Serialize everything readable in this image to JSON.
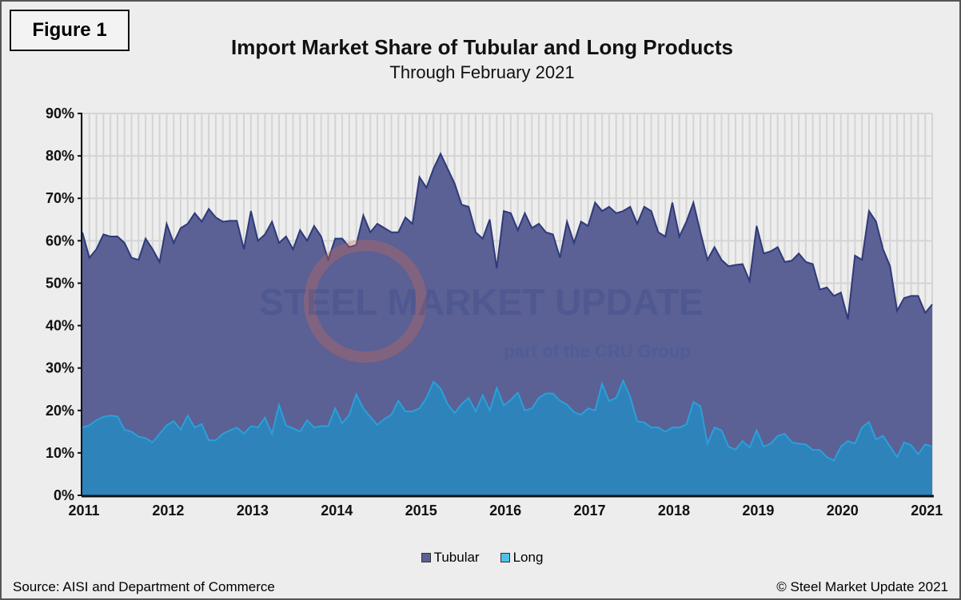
{
  "figure_label": "Figure 1",
  "source": "Source: AISI and Department of Commerce",
  "copyright": "© Steel Market Update 2021",
  "watermark": {
    "line1": "STEEL MARKET UPDATE",
    "line2": "part of the CRU Group"
  },
  "chart_data": {
    "type": "area",
    "stacked": false,
    "title": "Import Market Share of Tubular and Long Products",
    "subtitle": "Through February 2021",
    "x_start": "2011-01",
    "x_end": "2021-02",
    "frequency": "monthly",
    "x_tick_labels": [
      "2011",
      "2012",
      "2013",
      "2014",
      "2015",
      "2016",
      "2017",
      "2018",
      "2019",
      "2020",
      "2021"
    ],
    "y_tick_labels": [
      "0%",
      "10%",
      "20%",
      "30%",
      "40%",
      "50%",
      "60%",
      "70%",
      "80%",
      "90%"
    ],
    "ylim": [
      0,
      90
    ],
    "grid": true,
    "legend_position": "bottom",
    "colors": {
      "Tubular": "#5b6095",
      "Tubular_line": "#2e3a7a",
      "Long": "#2f83bb",
      "Long_line": "#2aa0d8",
      "background": "#ededed"
    },
    "series": [
      {
        "name": "Tubular",
        "values": [
          62,
          56,
          58,
          61.5,
          61,
          61,
          59.5,
          56,
          55.5,
          60.5,
          58,
          55,
          64,
          59.5,
          63,
          64,
          66.5,
          64.5,
          67.5,
          65.5,
          64.5,
          64.7,
          64.7,
          58,
          67,
          60,
          61.5,
          64.5,
          59.5,
          61,
          58,
          62.5,
          60,
          63.5,
          61,
          55.5,
          60.5,
          60.5,
          58.5,
          59,
          66,
          62,
          64,
          63,
          62,
          62,
          65.5,
          64,
          75,
          72.5,
          77,
          80.5,
          77,
          73.5,
          68.5,
          68,
          62,
          60.5,
          65,
          53.5,
          67,
          66.5,
          62.5,
          66.5,
          63,
          64,
          62,
          61.5,
          56,
          64.5,
          59.5,
          64.5,
          63.5,
          69,
          67,
          68,
          66.5,
          67,
          68,
          64,
          68,
          67,
          62,
          61,
          69,
          61,
          64.5,
          69,
          62,
          55.5,
          58.5,
          55.5,
          54,
          54.3,
          54.5,
          50.5,
          63.5,
          57,
          57.5,
          58.5,
          55,
          55.3,
          57,
          55,
          54.5,
          48.5,
          49,
          47,
          47.8,
          41.5,
          56.5,
          55.5,
          67,
          64.5,
          58,
          54,
          43.5,
          46.5,
          47,
          47,
          43,
          45
        ]
      },
      {
        "name": "Long",
        "values": [
          16,
          16.5,
          17.7,
          18.5,
          18.8,
          18.6,
          15.5,
          15,
          13.8,
          13.5,
          12.5,
          14.5,
          16.5,
          17.5,
          15.5,
          18.8,
          16,
          16.8,
          13,
          13,
          14.5,
          15.3,
          16,
          14.5,
          16.3,
          16,
          18.3,
          14.5,
          21.3,
          16.5,
          15.8,
          15,
          17.7,
          16,
          16.3,
          16.3,
          20.5,
          17,
          19,
          23.8,
          20.5,
          18.5,
          16.6,
          18,
          19,
          22.3,
          19.8,
          19.8,
          20.5,
          23,
          26.8,
          25.2,
          21.5,
          19.4,
          21.5,
          23,
          19.8,
          23.6,
          20,
          25.3,
          21.2,
          22.5,
          24.2,
          20,
          20.5,
          23,
          24,
          24,
          22.3,
          21.4,
          19.6,
          19,
          20.5,
          20,
          26.3,
          22.2,
          23,
          27,
          23.2,
          17.5,
          17.2,
          16,
          16,
          15,
          16,
          16,
          16.7,
          22,
          21,
          12.2,
          16,
          15.3,
          11.5,
          10.8,
          12.8,
          11.3,
          15.3,
          11.5,
          12.2,
          14,
          14.5,
          12.5,
          12.2,
          12,
          10.7,
          10.7,
          9,
          8.2,
          11.5,
          12.8,
          12.2,
          16,
          17.3,
          13.2,
          14,
          11.5,
          9,
          12.5,
          11.8,
          9.7,
          12,
          11.5
        ]
      }
    ]
  }
}
